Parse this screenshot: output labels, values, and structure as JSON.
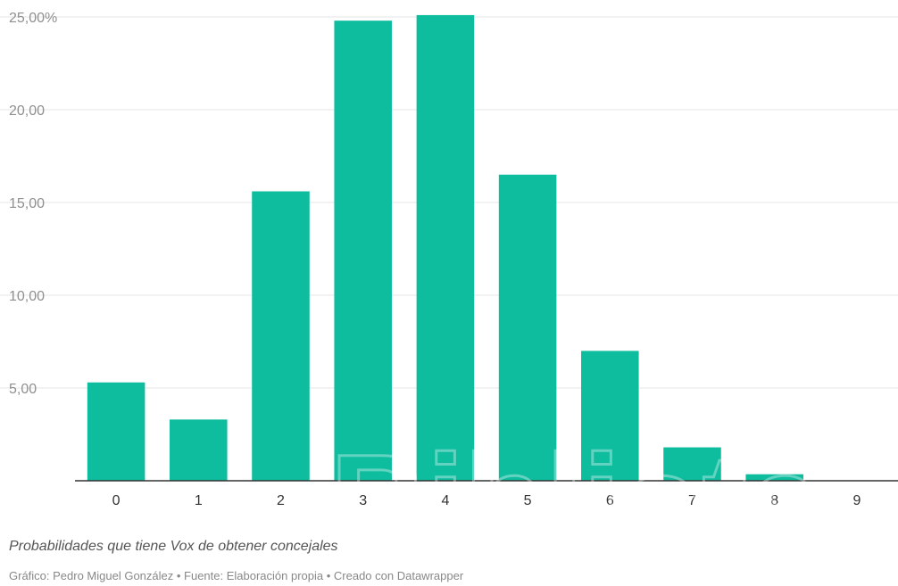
{
  "chart_data": {
    "type": "bar",
    "categories": [
      "0",
      "1",
      "2",
      "3",
      "4",
      "5",
      "6",
      "7",
      "8",
      "9"
    ],
    "values": [
      5.3,
      3.3,
      15.6,
      24.8,
      25.1,
      16.5,
      7.0,
      1.8,
      0.35,
      0.0
    ],
    "ylim": [
      0,
      25
    ],
    "yticks": [
      5,
      10,
      15,
      20,
      25
    ],
    "ytick_labels": [
      "5,00",
      "10,00",
      "15,00",
      "20,00",
      "25,00%"
    ],
    "grid": true,
    "colors": {
      "bar": "#0ebc9e"
    }
  },
  "footer": {
    "note": "Probabilidades que tiene Vox de obtener concejales",
    "credit": "Gráfico: Pedro Miguel González • Fuente: Elaboración propia • Creado con Datawrapper"
  },
  "watermark": {
    "text": "Biblioteca"
  }
}
